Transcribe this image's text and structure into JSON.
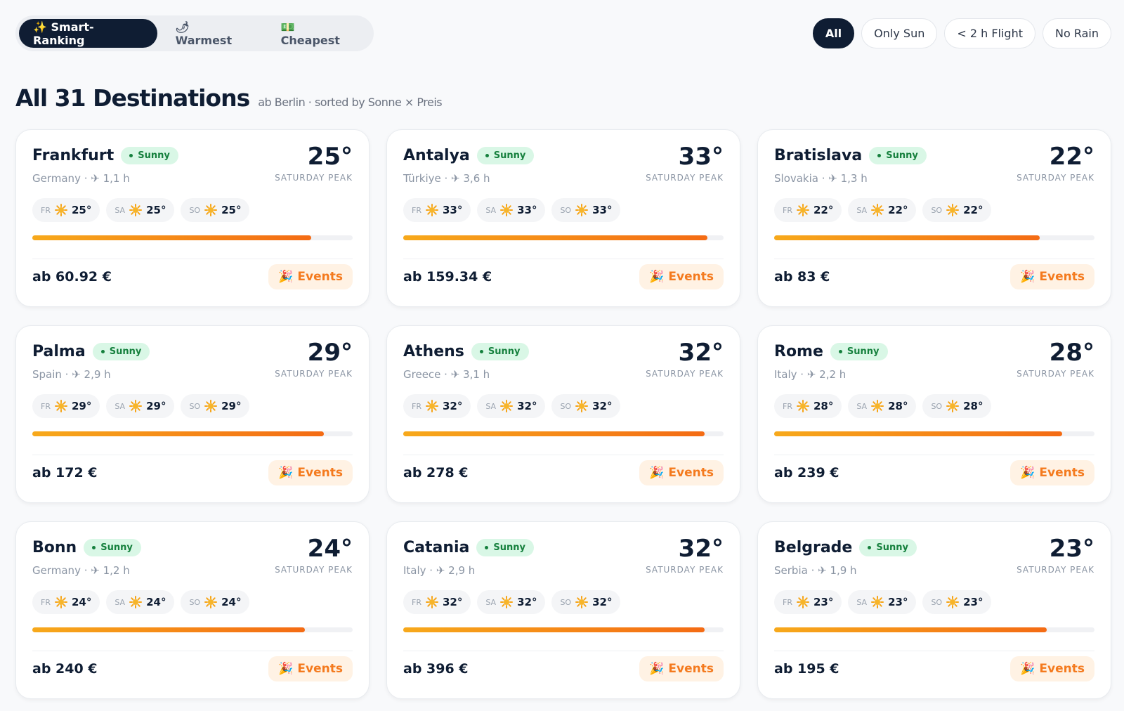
{
  "tabs": [
    "✨ Smart-Ranking",
    "🌶 Warmest",
    "💵 Cheapest"
  ],
  "filters": [
    "All",
    "Only Sun",
    "< 2 h Flight",
    "No Rain"
  ],
  "heading": {
    "title": "All 31 Destinations",
    "subtitle": "ab Berlin · sorted by Sonne × Preis"
  },
  "peak_label": "SATURDAY PEAK",
  "cards": [
    {
      "name": "Frankfurt",
      "badge": "Sunny",
      "temp": "25°",
      "route": "Germany · ✈ 1,1 h",
      "days": [
        {
          "day": "FR",
          "temp": "25°"
        },
        {
          "day": "SA",
          "temp": "25°"
        },
        {
          "day": "SO",
          "temp": "25°"
        }
      ],
      "bar": 87,
      "price": "ab 60.92 €",
      "action": "🎉 Events"
    },
    {
      "name": "Antalya",
      "badge": "Sunny",
      "temp": "33°",
      "route": "Türkiye · ✈ 3,6 h",
      "days": [
        {
          "day": "FR",
          "temp": "33°"
        },
        {
          "day": "SA",
          "temp": "33°"
        },
        {
          "day": "SO",
          "temp": "33°"
        }
      ],
      "bar": 95,
      "price": "ab 159.34 €",
      "action": "🎉 Events"
    },
    {
      "name": "Bratislava",
      "badge": "Sunny",
      "temp": "22°",
      "route": "Slovakia · ✈ 1,3 h",
      "days": [
        {
          "day": "FR",
          "temp": "22°"
        },
        {
          "day": "SA",
          "temp": "22°"
        },
        {
          "day": "SO",
          "temp": "22°"
        }
      ],
      "bar": 83,
      "price": "ab 83 €",
      "action": "🎉 Events"
    },
    {
      "name": "Palma",
      "badge": "Sunny",
      "temp": "29°",
      "route": "Spain · ✈ 2,9 h",
      "days": [
        {
          "day": "FR",
          "temp": "29°"
        },
        {
          "day": "SA",
          "temp": "29°"
        },
        {
          "day": "SO",
          "temp": "29°"
        }
      ],
      "bar": 91,
      "price": "ab 172 €",
      "action": "🎉 Events"
    },
    {
      "name": "Athens",
      "badge": "Sunny",
      "temp": "32°",
      "route": "Greece · ✈ 3,1 h",
      "days": [
        {
          "day": "FR",
          "temp": "32°"
        },
        {
          "day": "SA",
          "temp": "32°"
        },
        {
          "day": "SO",
          "temp": "32°"
        }
      ],
      "bar": 94,
      "price": "ab 278 €",
      "action": "🎉 Events"
    },
    {
      "name": "Rome",
      "badge": "Sunny",
      "temp": "28°",
      "route": "Italy · ✈ 2,2 h",
      "days": [
        {
          "day": "FR",
          "temp": "28°"
        },
        {
          "day": "SA",
          "temp": "28°"
        },
        {
          "day": "SO",
          "temp": "28°"
        }
      ],
      "bar": 90,
      "price": "ab 239 €",
      "action": "🎉 Events"
    },
    {
      "name": "Bonn",
      "badge": "Sunny",
      "temp": "24°",
      "route": "Germany · ✈ 1,2 h",
      "days": [
        {
          "day": "FR",
          "temp": "24°"
        },
        {
          "day": "SA",
          "temp": "24°"
        },
        {
          "day": "SO",
          "temp": "24°"
        }
      ],
      "bar": 85,
      "price": "ab 240 €",
      "action": "🎉 Events"
    },
    {
      "name": "Catania",
      "badge": "Sunny",
      "temp": "32°",
      "route": "Italy · ✈ 2,9 h",
      "days": [
        {
          "day": "FR",
          "temp": "32°"
        },
        {
          "day": "SA",
          "temp": "32°"
        },
        {
          "day": "SO",
          "temp": "32°"
        }
      ],
      "bar": 94,
      "price": "ab 396 €",
      "action": "🎉 Events"
    },
    {
      "name": "Belgrade",
      "badge": "Sunny",
      "temp": "23°",
      "route": "Serbia · ✈ 1,9 h",
      "days": [
        {
          "day": "FR",
          "temp": "23°"
        },
        {
          "day": "SA",
          "temp": "23°"
        },
        {
          "day": "SO",
          "temp": "23°"
        }
      ],
      "bar": 85,
      "price": "ab 195 €",
      "action": "🎉 Events"
    }
  ]
}
